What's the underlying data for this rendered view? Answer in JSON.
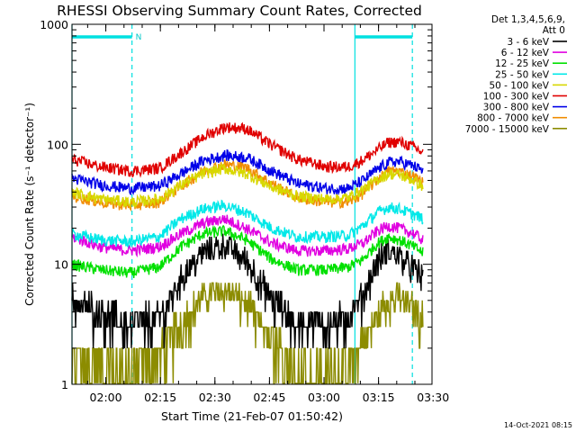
{
  "chart_data": {
    "type": "line",
    "title": "RHESSI Observing Summary Count Rates, Corrected",
    "xlabel": "Start Time (21-Feb-07 01:50:42)",
    "ylabel": "Corrected Count Rate (s⁻¹ detector⁻¹)",
    "x_unit": "minutes after 01:50:42",
    "xlim": [
      0,
      99
    ],
    "ylim": [
      1,
      1000
    ],
    "yscale": "log",
    "x_ticks": [
      {
        "label": "02:00",
        "value": 9.3
      },
      {
        "label": "02:15",
        "value": 24.3
      },
      {
        "label": "02:30",
        "value": 39.3
      },
      {
        "label": "02:45",
        "value": 54.3
      },
      {
        "label": "03:00",
        "value": 69.3
      },
      {
        "label": "03:15",
        "value": 84.3
      },
      {
        "label": "03:30",
        "value": 99.3
      }
    ],
    "y_ticks": [
      {
        "label": "1",
        "value": 1
      },
      {
        "label": "10",
        "value": 10
      },
      {
        "label": "100",
        "value": 100
      },
      {
        "label": "1000",
        "value": 1000
      }
    ],
    "legend_header": [
      "Det 1,3,4,5,6,9,",
      "Att 0"
    ],
    "shaded_intervals": [
      {
        "start": 0,
        "end": 16.5,
        "label": "N"
      },
      {
        "start": 77.8,
        "end": 93.6,
        "label": ""
      }
    ],
    "series": [
      {
        "name": "3 - 6 keV",
        "color": "#000000",
        "x": [
          0,
          8,
          16,
          24,
          30,
          36,
          42,
          48,
          55,
          62,
          70,
          76,
          80,
          84,
          87,
          90,
          94,
          96.5
        ],
        "y": [
          5.5,
          4.2,
          3.5,
          3.8,
          8,
          13,
          15,
          11,
          5.5,
          3.5,
          3.5,
          3.8,
          6,
          11,
          13.5,
          12,
          9.5,
          8
        ]
      },
      {
        "name": "6 - 12 keV",
        "color": "#e000e0",
        "x": [
          0,
          8,
          16,
          24,
          30,
          36,
          42,
          48,
          55,
          62,
          70,
          76,
          80,
          84,
          87,
          90,
          94,
          96.5
        ],
        "y": [
          17,
          14,
          13,
          14,
          18,
          22,
          24,
          20,
          15,
          13,
          13,
          13.5,
          15,
          19,
          21,
          20,
          18,
          16
        ]
      },
      {
        "name": "12 - 25 keV",
        "color": "#00e000",
        "x": [
          0,
          8,
          16,
          24,
          30,
          36,
          42,
          48,
          55,
          62,
          70,
          76,
          80,
          84,
          87,
          90,
          94,
          96.5
        ],
        "y": [
          10,
          9,
          8.5,
          9.5,
          14,
          18,
          19,
          16,
          11,
          9,
          9,
          9.5,
          11,
          15,
          17,
          16,
          14,
          12.5
        ]
      },
      {
        "name": "25 - 50 keV",
        "color": "#00e8e8",
        "x": [
          0,
          8,
          16,
          24,
          30,
          36,
          42,
          48,
          55,
          62,
          70,
          76,
          80,
          84,
          87,
          90,
          94,
          96.5
        ],
        "y": [
          18,
          16,
          15.5,
          17,
          24,
          29,
          31,
          27,
          20,
          17,
          17,
          17.5,
          21,
          27,
          30,
          29,
          26,
          24
        ]
      },
      {
        "name": "50 - 100 keV",
        "color": "#d8d800",
        "x": [
          0,
          8,
          16,
          24,
          30,
          36,
          42,
          48,
          55,
          62,
          70,
          76,
          80,
          84,
          87,
          90,
          94,
          96.5
        ],
        "y": [
          40,
          35,
          33,
          35,
          46,
          57,
          63,
          57,
          44,
          37,
          35,
          36,
          42,
          51,
          57,
          56,
          50,
          45
        ]
      },
      {
        "name": "100 - 300 keV",
        "color": "#e00000",
        "x": [
          0,
          8,
          16,
          24,
          30,
          36,
          42,
          48,
          55,
          62,
          70,
          76,
          80,
          84,
          87,
          90,
          94,
          96.5
        ],
        "y": [
          75,
          65,
          60,
          63,
          85,
          115,
          140,
          135,
          98,
          75,
          65,
          65,
          74,
          90,
          104,
          105,
          95,
          85
        ]
      },
      {
        "name": "300 - 800 keV",
        "color": "#0000e8",
        "x": [
          0,
          8,
          16,
          24,
          30,
          36,
          42,
          48,
          55,
          62,
          70,
          76,
          80,
          84,
          87,
          90,
          94,
          96.5
        ],
        "y": [
          52,
          46,
          43,
          45,
          57,
          73,
          81,
          78,
          60,
          47,
          43,
          43,
          50,
          62,
          71,
          72,
          66,
          60
        ]
      },
      {
        "name": "800 - 7000 keV",
        "color": "#f08c00",
        "x": [
          0,
          8,
          16,
          24,
          30,
          36,
          42,
          48,
          55,
          62,
          70,
          76,
          80,
          84,
          87,
          90,
          94,
          96.5
        ],
        "y": [
          37,
          33,
          31,
          33,
          45,
          60,
          68,
          64,
          47,
          36,
          33,
          33,
          39,
          51,
          60,
          60,
          54,
          48
        ]
      },
      {
        "name": "7000 - 15000 keV",
        "color": "#8c8c00",
        "x": [
          0,
          8,
          16,
          24,
          30,
          36,
          42,
          48,
          55,
          62,
          70,
          76,
          80,
          84,
          87,
          90,
          94,
          96.5
        ],
        "y": [
          2,
          1.5,
          1.5,
          2,
          3.5,
          5.5,
          6.5,
          5,
          2.5,
          1.5,
          1.5,
          1.5,
          2.5,
          4,
          5.5,
          5.5,
          4.5,
          4
        ]
      }
    ]
  },
  "footer": {
    "timestamp": "14-Oct-2021 08:15"
  }
}
